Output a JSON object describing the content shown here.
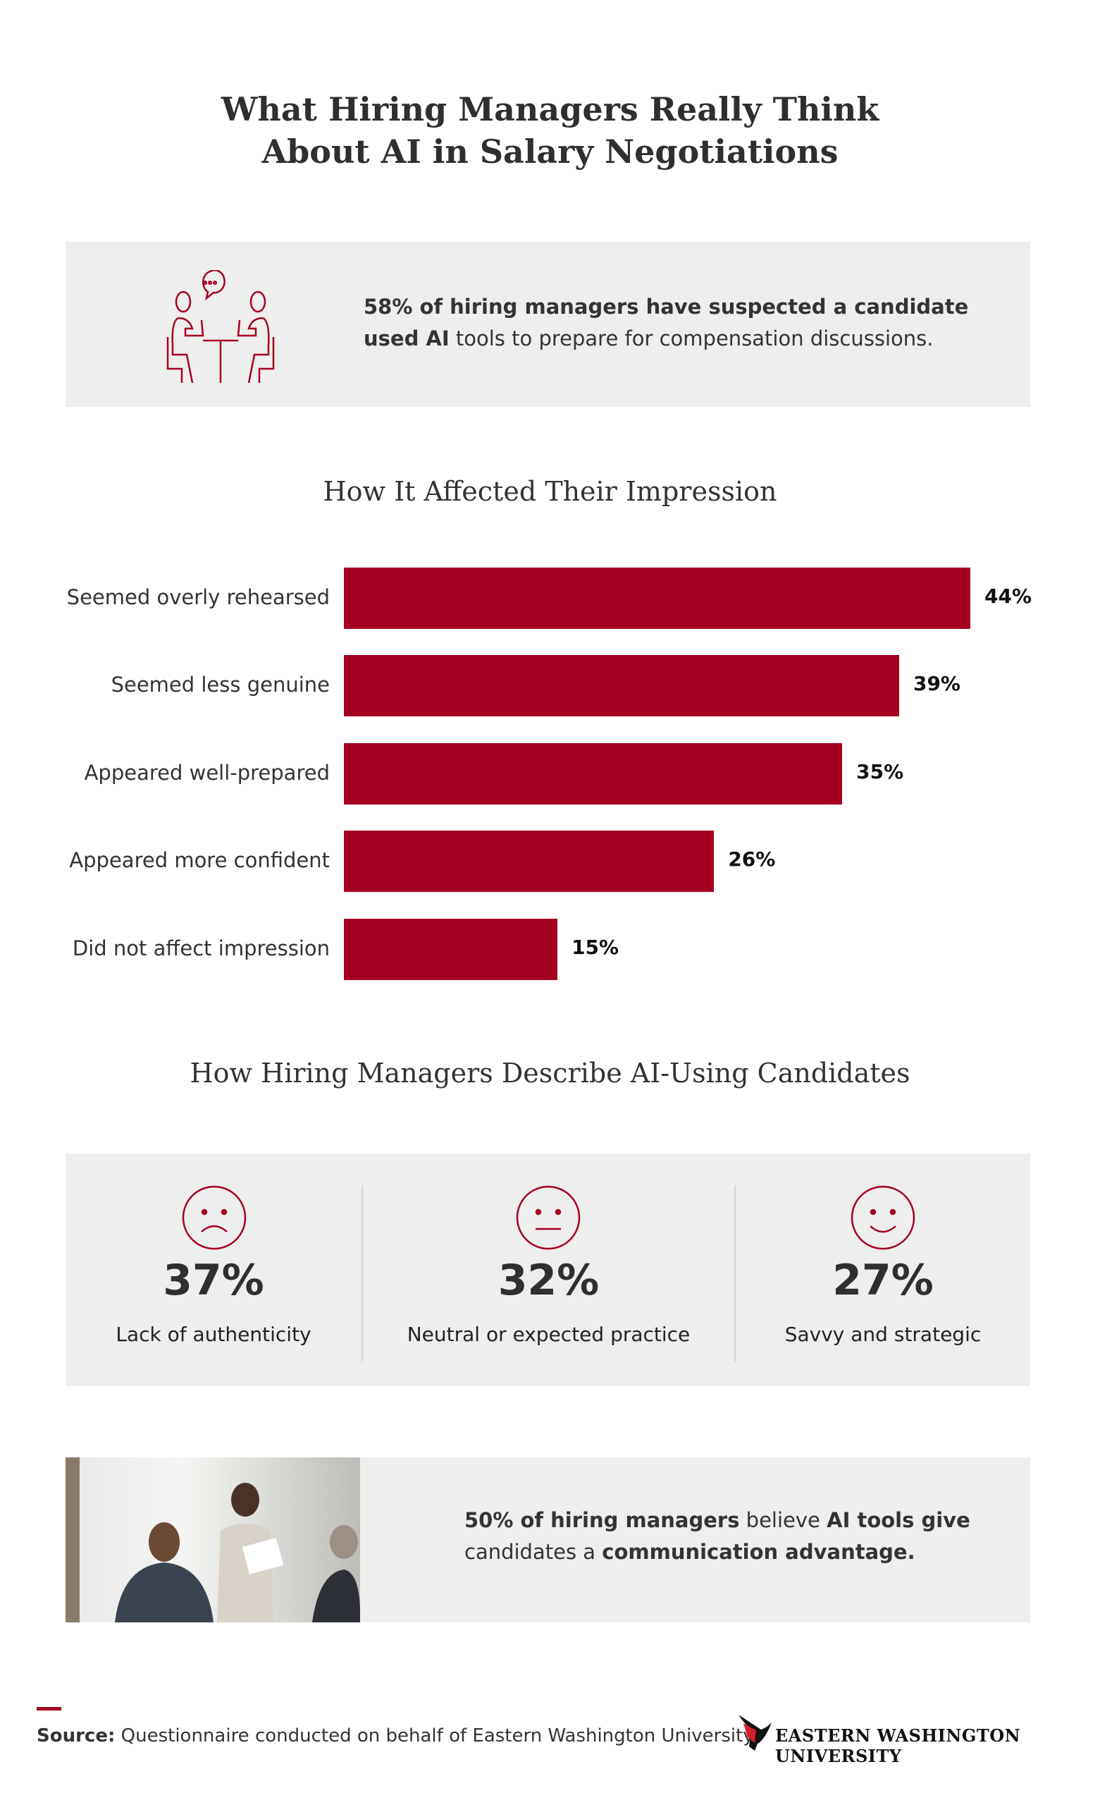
{
  "title": {
    "line1": "What Hiring Managers Really Think",
    "line2": "About AI in Salary Negotiations"
  },
  "stat1": {
    "bold": "58% of hiring managers have suspected a candidate used AI",
    "rest": " tools to prepare for compensation discussions.",
    "icon": "meeting-conversation-icon"
  },
  "chart_data": {
    "type": "bar",
    "orientation": "horizontal",
    "title": "How It Affected Their Impression",
    "categories": [
      "Seemed overly rehearsed",
      "Seemed less genuine",
      "Appeared well-prepared",
      "Appeared more confident",
      "Did not affect impression"
    ],
    "values": [
      44,
      39,
      35,
      26,
      15
    ],
    "value_labels": [
      "44%",
      "39%",
      "35%",
      "26%",
      "15%"
    ],
    "unit": "%",
    "color": "#a50021",
    "grid": false
  },
  "describe": {
    "title": "How Hiring Managers Describe AI-Using Candidates",
    "items": [
      {
        "pct": "37%",
        "label": "Lack of authenticity",
        "icon": "sad-face-icon"
      },
      {
        "pct": "32%",
        "label": "Neutral or expected practice",
        "icon": "neutral-face-icon"
      },
      {
        "pct": "27%",
        "label": "Savvy and strategic",
        "icon": "happy-face-icon"
      }
    ]
  },
  "stat2": {
    "b1": "50% of hiring managers",
    "t1": " believe ",
    "b2": "AI tools give",
    "t2": " candidates a ",
    "b3": "communication advantage."
  },
  "footer": {
    "source_label": "Source:",
    "source_text": " Questionnaire conducted on behalf of Eastern Washington University",
    "logo_text": "EASTERN WASHINGTON UNIVERSITY"
  },
  "colors": {
    "accent": "#a50021",
    "panel": "#eeeeee"
  }
}
